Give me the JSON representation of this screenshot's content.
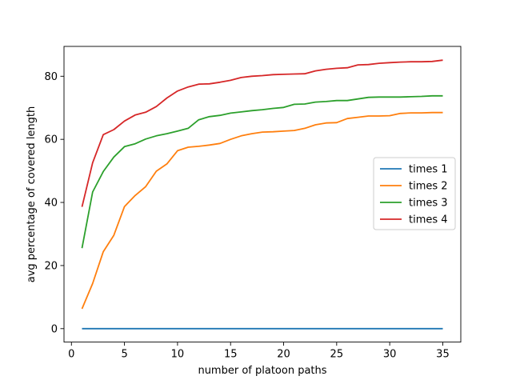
{
  "chart_data": {
    "type": "line",
    "title": "",
    "xlabel": "number of platoon paths",
    "ylabel": "avg percentage of covered length",
    "xlim": [
      -0.7,
      36.7
    ],
    "ylim": [
      -4.26,
      89.46
    ],
    "xticks": [
      0,
      5,
      10,
      15,
      20,
      25,
      30,
      35
    ],
    "yticks": [
      0,
      20,
      40,
      60,
      80
    ],
    "grid": false,
    "legend_position": "center-right",
    "x": [
      1,
      2,
      3,
      4,
      5,
      6,
      7,
      8,
      9,
      10,
      11,
      12,
      13,
      14,
      15,
      16,
      17,
      18,
      19,
      20,
      21,
      22,
      23,
      24,
      25,
      26,
      27,
      28,
      29,
      30,
      31,
      32,
      33,
      34,
      35
    ],
    "series": [
      {
        "name": "times 1",
        "color": "#1f77b4",
        "values": [
          0,
          0,
          0,
          0,
          0,
          0,
          0,
          0,
          0,
          0,
          0,
          0,
          0,
          0,
          0,
          0,
          0,
          0,
          0,
          0,
          0,
          0,
          0,
          0,
          0,
          0,
          0,
          0,
          0,
          0,
          0,
          0,
          0,
          0,
          0
        ]
      },
      {
        "name": "times 2",
        "color": "#ff7f0e",
        "values": [
          6.3,
          14.3,
          24.4,
          29.6,
          38.7,
          42.2,
          45.0,
          49.9,
          52.2,
          56.4,
          57.5,
          57.8,
          58.2,
          58.7,
          60.0,
          61.1,
          61.8,
          62.3,
          62.4,
          62.6,
          62.8,
          63.5,
          64.6,
          65.2,
          65.3,
          66.6,
          67.0,
          67.4,
          67.4,
          67.5,
          68.2,
          68.4,
          68.4,
          68.5,
          68.5
        ]
      },
      {
        "name": "times 3",
        "color": "#2ca02c",
        "values": [
          25.5,
          43.3,
          49.8,
          54.4,
          57.7,
          58.6,
          60.1,
          61.1,
          61.8,
          62.6,
          63.5,
          66.2,
          67.2,
          67.6,
          68.3,
          68.7,
          69.1,
          69.4,
          69.8,
          70.1,
          71.1,
          71.2,
          71.8,
          72.0,
          72.3,
          72.3,
          72.8,
          73.3,
          73.4,
          73.4,
          73.4,
          73.5,
          73.6,
          73.8,
          73.8
        ]
      },
      {
        "name": "times 4",
        "color": "#d62728",
        "values": [
          38.6,
          52.6,
          61.5,
          63.1,
          65.8,
          67.7,
          68.6,
          70.4,
          73.1,
          75.3,
          76.6,
          77.5,
          77.6,
          78.1,
          78.7,
          79.6,
          80.0,
          80.2,
          80.5,
          80.6,
          80.7,
          80.8,
          81.7,
          82.2,
          82.5,
          82.7,
          83.6,
          83.7,
          84.1,
          84.3,
          84.5,
          84.6,
          84.6,
          84.7,
          85.1
        ]
      }
    ]
  }
}
